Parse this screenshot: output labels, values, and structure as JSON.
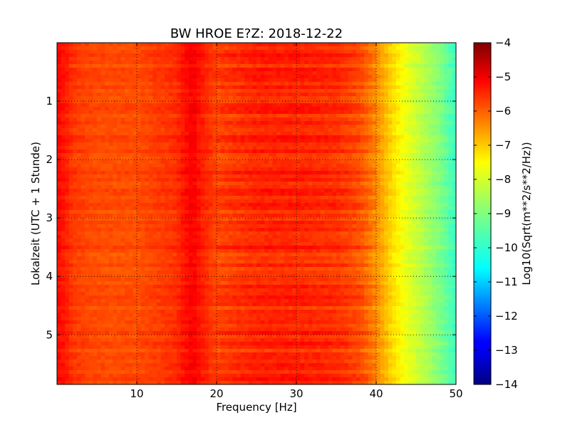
{
  "chart_data": {
    "type": "heatmap",
    "title": "BW HROE E?Z: 2018-12-22",
    "xlabel": "Frequency [Hz]",
    "ylabel": "Lokalzeit (UTC + 1 Stunde)",
    "xlim": [
      0,
      50
    ],
    "ylim": [
      5.85,
      0
    ],
    "y_inverted": true,
    "x_ticks": [
      10,
      20,
      30,
      40,
      50
    ],
    "y_ticks": [
      1,
      2,
      3,
      4,
      5
    ],
    "grid": true,
    "colormap": "jet",
    "colorbar": {
      "label": "Log10(Sqrt(m**2/s**2/Hz))",
      "range": [
        -14,
        -4
      ],
      "ticks": [
        -4,
        -5,
        -6,
        -7,
        -8,
        -9,
        -10,
        -11,
        -12,
        -13,
        -14
      ]
    },
    "spectral_profile": {
      "frequency_hz": [
        0,
        1,
        2,
        5,
        10,
        15,
        16,
        17,
        18,
        20,
        25,
        30,
        35,
        38,
        40,
        42,
        44,
        46,
        48,
        50
      ],
      "log10_amplitude": [
        -5.3,
        -5.5,
        -5.8,
        -6.0,
        -6.0,
        -5.7,
        -5.4,
        -5.2,
        -5.5,
        -5.9,
        -5.6,
        -5.6,
        -5.7,
        -6.0,
        -6.6,
        -7.4,
        -8.0,
        -8.5,
        -9.0,
        -9.7
      ]
    }
  }
}
